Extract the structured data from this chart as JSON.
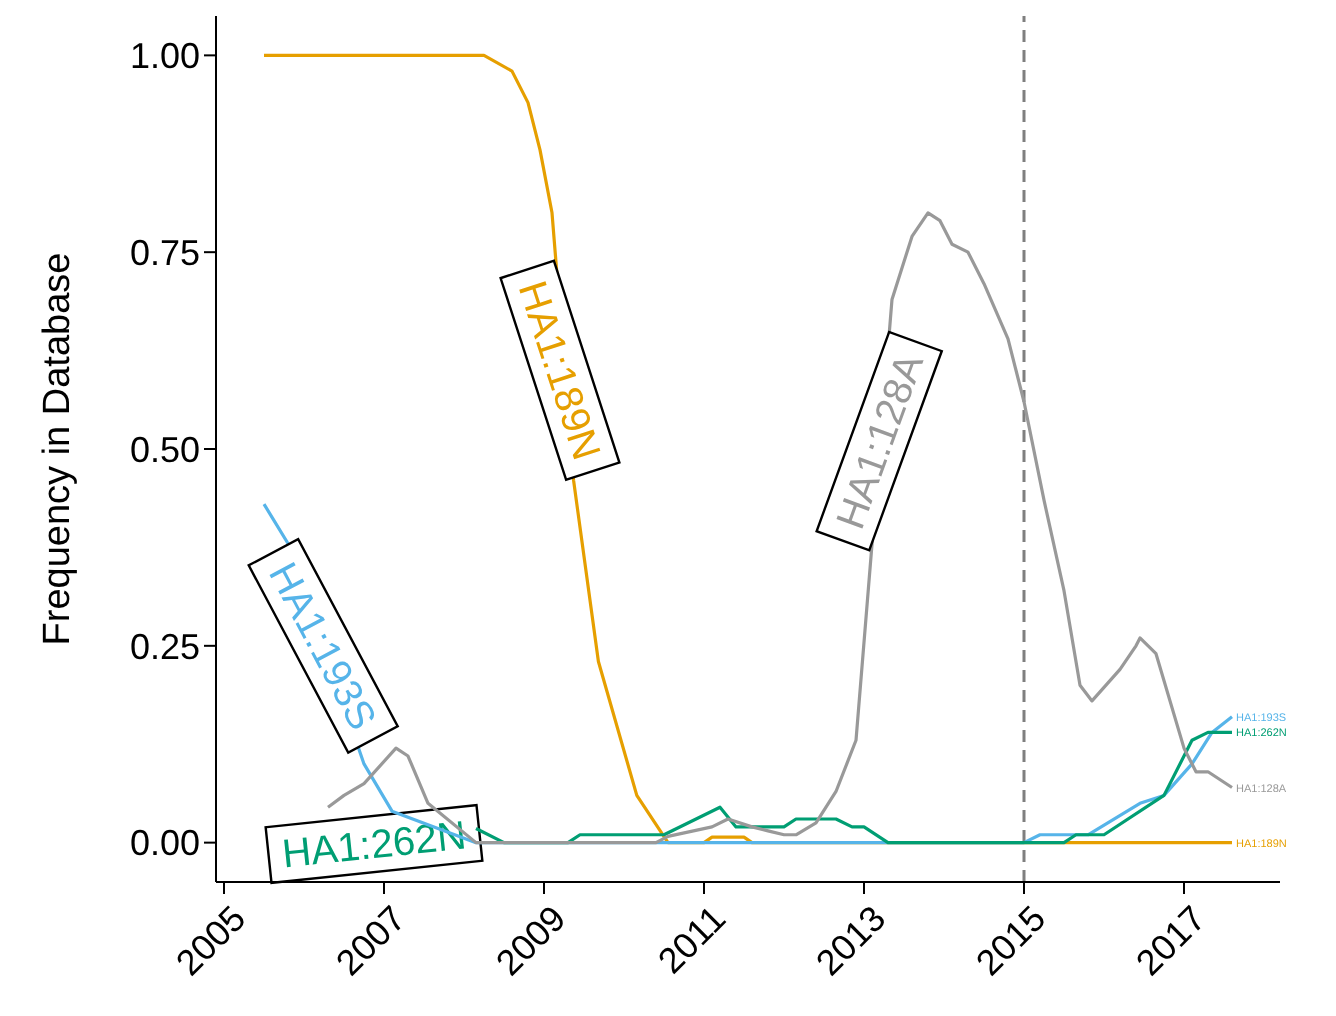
{
  "chart_data": {
    "type": "line",
    "ylabel": "Frequency in Database",
    "xlim": [
      2004.9,
      2018.2
    ],
    "xticks": [
      2005,
      2007,
      2009,
      2011,
      2013,
      2015,
      2017
    ],
    "ylim": [
      -0.05,
      1.05
    ],
    "yticks": [
      {
        "value": 0,
        "label": "0.00"
      },
      {
        "value": 0.25,
        "label": "0.25"
      },
      {
        "value": 0.5,
        "label": "0.50"
      },
      {
        "value": 0.75,
        "label": "0.75"
      },
      {
        "value": 1,
        "label": "1.00"
      }
    ],
    "grid": false,
    "legend": false,
    "marker": "none",
    "line_style": "solid",
    "series": [
      {
        "name": "HA1:189N",
        "color": "#e69f00",
        "x": [
          2005.5,
          2008.25,
          2008.6,
          2008.8,
          2008.95,
          2009.1,
          2009.37,
          2009.68,
          2010.16,
          2010.55,
          2011.0,
          2011.1,
          2011.5,
          2011.6,
          2017.6
        ],
        "values": [
          1,
          1,
          0.98,
          0.94,
          0.88,
          0.8,
          0.46,
          0.23,
          0.06,
          0,
          0,
          0.007,
          0.007,
          0,
          0
        ]
      },
      {
        "name": "HA1:193S",
        "color": "#56b4e9",
        "x": [
          2005.5,
          2005.62,
          2005.8,
          2006.75,
          2007.1,
          2008.15,
          2015.0,
          2015.2,
          2015.8,
          2016.45,
          2016.75,
          2017.1,
          2017.35,
          2017.6
        ],
        "values": [
          0.43,
          0.41,
          0.38,
          0.1,
          0.04,
          0,
          0,
          0.01,
          0.01,
          0.05,
          0.06,
          0.1,
          0.14,
          0.16
        ]
      },
      {
        "name": "HA1:262N",
        "color": "#009e73",
        "x": [
          2008.15,
          2008.5,
          2009.3,
          2009.45,
          2010.5,
          2011.2,
          2011.4,
          2012.0,
          2012.15,
          2012.65,
          2012.85,
          2013.0,
          2013.3,
          2015.5,
          2015.65,
          2016.0,
          2016.75,
          2017.1,
          2017.3,
          2017.6
        ],
        "values": [
          0.018,
          0,
          0,
          0.01,
          0.01,
          0.045,
          0.02,
          0.02,
          0.03,
          0.03,
          0.02,
          0.02,
          0,
          0,
          0.01,
          0.01,
          0.06,
          0.13,
          0.14,
          0.14
        ]
      },
      {
        "name": "HA1:128A",
        "color": "#999999",
        "x": [
          2006.3,
          2006.5,
          2006.75,
          2007.15,
          2007.3,
          2007.55,
          2008.15,
          2010.4,
          2010.55,
          2011.1,
          2011.3,
          2011.6,
          2011.8,
          2012.0,
          2012.15,
          2012.4,
          2012.65,
          2012.9,
          2013.35,
          2013.6,
          2013.8,
          2013.95,
          2014.1,
          2014.3,
          2014.5,
          2014.8,
          2015.0,
          2015.25,
          2015.5,
          2015.7,
          2015.85,
          2016.2,
          2016.4,
          2016.45,
          2016.65,
          2017.0,
          2017.15,
          2017.3,
          2017.6
        ],
        "values": [
          0.045,
          0.06,
          0.075,
          0.12,
          0.11,
          0.05,
          0,
          0,
          0.008,
          0.02,
          0.03,
          0.02,
          0.015,
          0.01,
          0.01,
          0.025,
          0.065,
          0.13,
          0.69,
          0.77,
          0.8,
          0.79,
          0.76,
          0.75,
          0.71,
          0.64,
          0.56,
          0.435,
          0.32,
          0.2,
          0.18,
          0.22,
          0.25,
          0.26,
          0.24,
          0.12,
          0.09,
          0.09,
          0.07
        ]
      }
    ],
    "annotations": [
      {
        "text": "HA1:189N",
        "x": 2009.2,
        "y": 0.6
      },
      {
        "text": "HA1:193S",
        "x": 2006.24,
        "y": 0.25
      },
      "HA1:262N",
      {
        "text": "HA1:128A",
        "x": 2013.19,
        "y": 0.51
      }
    ],
    "ref_lines": [
      {
        "axis": "x",
        "value": 2015,
        "color": "#7f7f7f",
        "line_style": "dashed"
      }
    ]
  }
}
